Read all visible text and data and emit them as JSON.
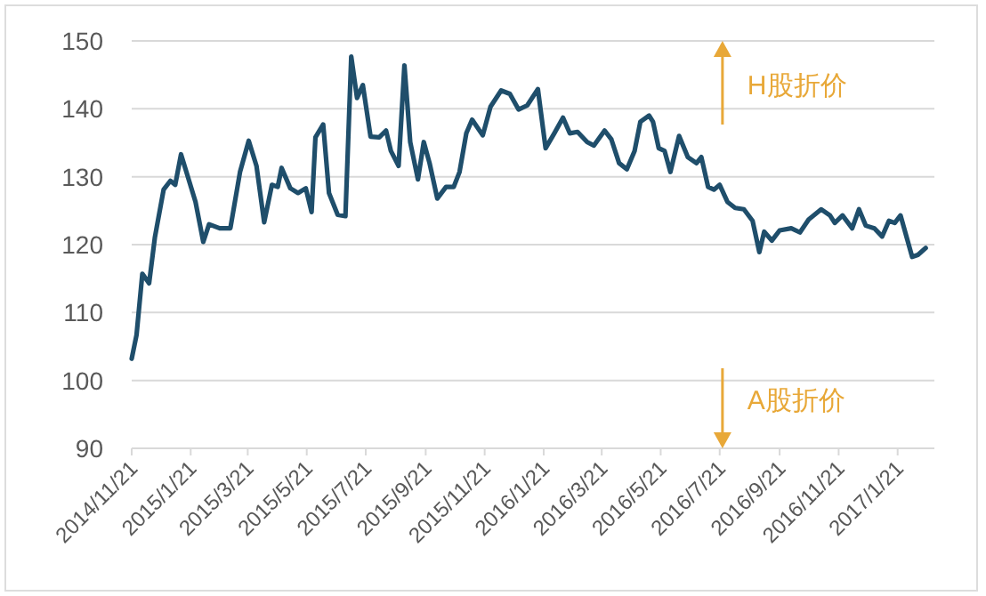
{
  "chart_data": {
    "type": "line",
    "ylim": [
      90,
      150
    ],
    "yticks": [
      90,
      100,
      110,
      120,
      130,
      140,
      150
    ],
    "xlim": [
      "2014-11-21",
      "2017-02-28"
    ],
    "xticks": [
      {
        "value": "2014-11-21",
        "label": "2014/11/21"
      },
      {
        "value": "2015-01-21",
        "label": "2015/1/21"
      },
      {
        "value": "2015-03-21",
        "label": "2015/3/21"
      },
      {
        "value": "2015-05-21",
        "label": "2015/5/21"
      },
      {
        "value": "2015-07-21",
        "label": "2015/7/21"
      },
      {
        "value": "2015-09-21",
        "label": "2015/9/21"
      },
      {
        "value": "2015-11-21",
        "label": "2015/11/21"
      },
      {
        "value": "2016-01-21",
        "label": "2016/1/21"
      },
      {
        "value": "2016-03-21",
        "label": "2016/3/21"
      },
      {
        "value": "2016-05-21",
        "label": "2016/5/21"
      },
      {
        "value": "2016-07-21",
        "label": "2016/7/21"
      },
      {
        "value": "2016-09-21",
        "label": "2016/9/21"
      },
      {
        "value": "2016-11-21",
        "label": "2016/11/21"
      },
      {
        "value": "2017-01-21",
        "label": "2017/1/21"
      }
    ],
    "grid": "y",
    "marker": "none",
    "line_style": "solid",
    "annotations": [
      "H股折价",
      "A股折价"
    ],
    "x": [
      "2014-11-21",
      "2014-11-26",
      "2014-12-02",
      "2014-12-09",
      "2014-12-15",
      "2014-12-24",
      "2014-12-31",
      "2015-01-05",
      "2015-01-11",
      "2015-01-26",
      "2015-02-03",
      "2015-02-09",
      "2015-02-20",
      "2015-03-03",
      "2015-03-13",
      "2015-03-22",
      "2015-03-30",
      "2015-04-07",
      "2015-04-15",
      "2015-04-21",
      "2015-04-25",
      "2015-05-04",
      "2015-05-12",
      "2015-05-20",
      "2015-05-26",
      "2015-05-30",
      "2015-06-07",
      "2015-06-13",
      "2015-06-22",
      "2015-06-30",
      "2015-07-06",
      "2015-07-12",
      "2015-07-18",
      "2015-07-26",
      "2015-08-04",
      "2015-08-11",
      "2015-08-16",
      "2015-08-24",
      "2015-08-30",
      "2015-09-05",
      "2015-09-13",
      "2015-09-19",
      "2015-09-25",
      "2015-10-03",
      "2015-10-12",
      "2015-10-20",
      "2015-10-26",
      "2015-11-02",
      "2015-11-08",
      "2015-11-19",
      "2015-11-27",
      "2015-12-08",
      "2015-12-17",
      "2015-12-26",
      "2016-01-04",
      "2016-01-15",
      "2016-01-23",
      "2016-02-01",
      "2016-02-10",
      "2016-02-17",
      "2016-02-25",
      "2016-03-06",
      "2016-03-13",
      "2016-03-24",
      "2016-03-31",
      "2016-04-08",
      "2016-04-16",
      "2016-04-24",
      "2016-04-30",
      "2016-05-09",
      "2016-05-13",
      "2016-05-19",
      "2016-05-25",
      "2016-05-31",
      "2016-06-09",
      "2016-06-18",
      "2016-06-27",
      "2016-07-02",
      "2016-07-09",
      "2016-07-15",
      "2016-07-21",
      "2016-07-29",
      "2016-08-06",
      "2016-08-15",
      "2016-08-24",
      "2016-08-31",
      "2016-09-05",
      "2016-09-13",
      "2016-09-21",
      "2016-10-03",
      "2016-10-12",
      "2016-10-21",
      "2016-11-03",
      "2016-11-12",
      "2016-11-17",
      "2016-11-25",
      "2016-12-05",
      "2016-12-12",
      "2016-12-19",
      "2016-12-28",
      "2017-01-05",
      "2017-01-12",
      "2017-01-18",
      "2017-01-24",
      "2017-02-05",
      "2017-02-11",
      "2017-02-19"
    ],
    "series": [
      {
        "color": "#1f4e6b",
        "values": [
          103.2,
          106.7,
          115.7,
          114.3,
          121.1,
          128.1,
          129.4,
          128.8,
          133.3,
          126.3,
          120.4,
          123,
          122.4,
          122.4,
          130.7,
          135.3,
          131.6,
          123.3,
          128.8,
          128.5,
          131.3,
          128.3,
          127.6,
          128.3,
          124.8,
          135.8,
          137.7,
          127.6,
          124.4,
          124.2,
          147.7,
          141.6,
          143.5,
          135.9,
          135.8,
          136.8,
          133.8,
          131.6,
          146.4,
          135.1,
          129.6,
          135.1,
          132,
          126.8,
          128.5,
          128.5,
          130.7,
          136.4,
          138.4,
          136.1,
          140.3,
          142.7,
          142.2,
          139.9,
          140.5,
          142.9,
          134.2,
          136.4,
          138.7,
          136.4,
          136.6,
          135.1,
          134.6,
          136.8,
          135.5,
          132,
          131.1,
          133.8,
          138.1,
          139,
          138.1,
          134.2,
          133.8,
          130.7,
          136,
          132.9,
          132,
          132.9,
          128.5,
          128.1,
          128.8,
          126.3,
          125.4,
          125.2,
          123.5,
          118.9,
          121.9,
          120.6,
          122.1,
          122.4,
          121.8,
          123.7,
          125.2,
          124.3,
          123.2,
          124.3,
          122.4,
          125.2,
          122.8,
          122.4,
          121.2,
          123.5,
          123.2,
          124.3,
          118.2,
          118.5,
          119.5
        ]
      }
    ]
  }
}
